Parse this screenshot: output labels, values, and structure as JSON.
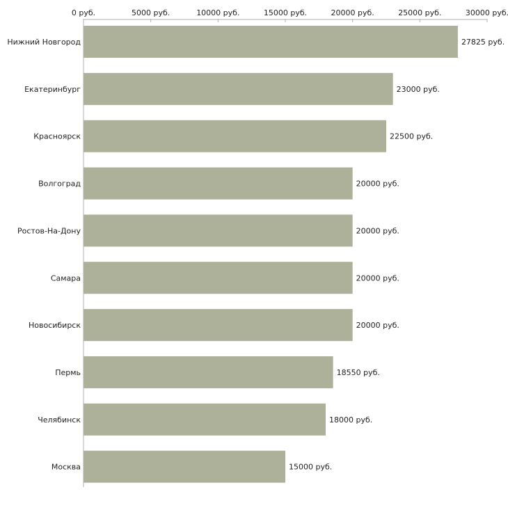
{
  "chart_data": {
    "type": "bar",
    "orientation": "horizontal",
    "title": "",
    "xlabel": "",
    "ylabel": "",
    "unit": "руб.",
    "xlim": [
      0,
      30000
    ],
    "x_ticks": [
      0,
      5000,
      10000,
      15000,
      20000,
      25000,
      30000
    ],
    "x_tick_labels": [
      "0 руб.",
      "5000 руб.",
      "10000 руб.",
      "15000 руб.",
      "20000 руб.",
      "25000 руб.",
      "30000 руб."
    ],
    "x_axis_position": "top",
    "grid": false,
    "legend": "none",
    "categories": [
      "Нижний Новгород",
      "Екатеринбург",
      "Красноярск",
      "Волгоград",
      "Ростов-На-Дону",
      "Самара",
      "Новосибирск",
      "Пермь",
      "Челябинск",
      "Москва"
    ],
    "values": [
      27825,
      23000,
      22500,
      20000,
      20000,
      20000,
      20000,
      18550,
      18000,
      15000
    ],
    "value_labels": [
      "27825 руб.",
      "23000 руб.",
      "22500 руб.",
      "20000 руб.",
      "20000 руб.",
      "20000 руб.",
      "20000 руб.",
      "18550 руб.",
      "18000 руб.",
      "15000 руб."
    ],
    "colors": {
      "bar": "#adb199",
      "axis": "#b0b0b0",
      "text": "#222222"
    }
  }
}
